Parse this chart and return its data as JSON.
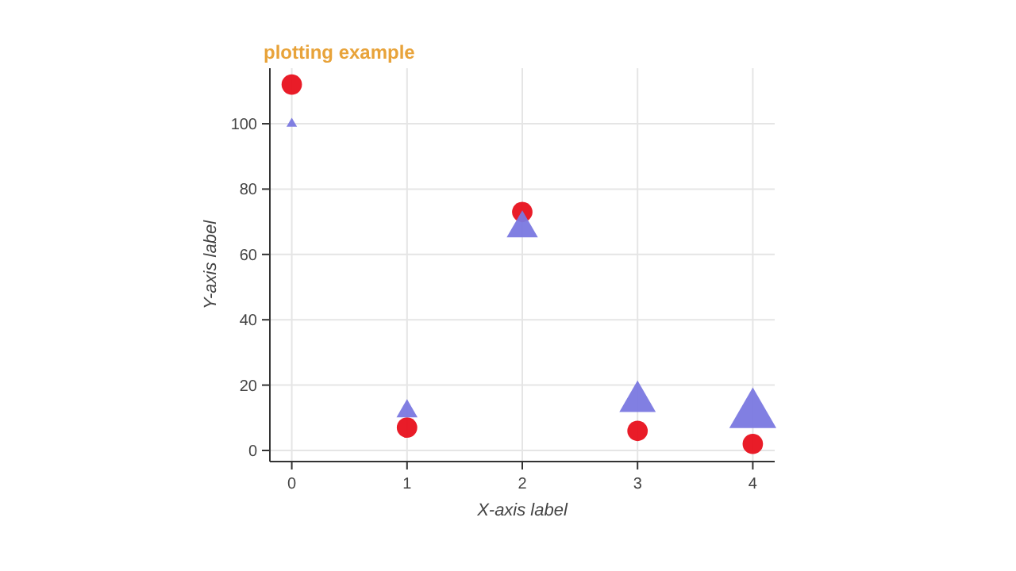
{
  "chart_data": {
    "type": "scatter",
    "title": "plotting example",
    "xlabel": "X-axis label",
    "ylabel": "Y-axis label",
    "x": [
      0,
      1,
      2,
      3,
      4
    ],
    "series": [
      {
        "type": "scatter",
        "color": "#e8101c",
        "marker": "circle",
        "values": [
          112,
          7,
          73,
          6,
          2
        ]
      },
      {
        "type": "bubble",
        "color": "#7a78e0",
        "marker": "triangle",
        "values": [
          100,
          12,
          68,
          15,
          11
        ],
        "sizes": [
          0.05,
          0.2,
          0.44,
          0.6,
          1
        ]
      }
    ],
    "xlim": [
      -0.19,
      4.19
    ],
    "xticks": [
      0,
      1,
      2,
      3,
      4
    ],
    "ylim": [
      -3.4,
      117
    ],
    "yticks": [
      0,
      20,
      40,
      60,
      80,
      100
    ],
    "grid": true
  }
}
